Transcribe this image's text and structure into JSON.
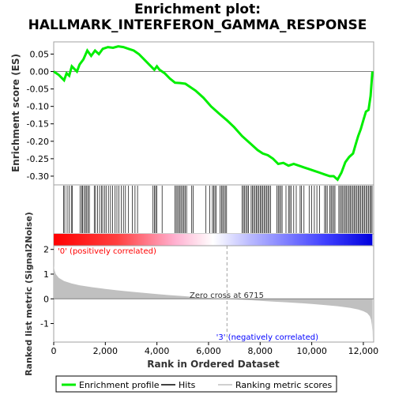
{
  "title_line1": "Enrichment plot:",
  "title_line2": "HALLMARK_INTERFERON_GAMMA_RESPONSE",
  "chart_data": {
    "type": "line",
    "x_label": "Rank in Ordered Dataset",
    "x_ticks": [
      0,
      2000,
      4000,
      6000,
      8000,
      10000,
      12000
    ],
    "x_tick_labels": [
      "0",
      "2,000",
      "4,000",
      "6,000",
      "8,000",
      "10,000",
      "12,000"
    ],
    "xlim": [
      0,
      12400
    ],
    "es_panel": {
      "ylabel": "Enrichment score (ES)",
      "ylim": [
        -0.325,
        0.085
      ],
      "y_ticks": [
        0.05,
        0.0,
        -0.05,
        -0.1,
        -0.15,
        -0.2,
        -0.25,
        -0.3
      ],
      "y_tick_labels": [
        "0.05",
        "0.00",
        "-0.05",
        "-0.10",
        "-0.15",
        "-0.20",
        "-0.25",
        "-0.30"
      ],
      "series_name": "Enrichment profile",
      "color": "#00ee00",
      "points": [
        [
          0,
          0.0
        ],
        [
          200,
          -0.01
        ],
        [
          400,
          -0.025
        ],
        [
          500,
          -0.005
        ],
        [
          600,
          -0.012
        ],
        [
          700,
          0.015
        ],
        [
          900,
          0.0
        ],
        [
          1000,
          0.02
        ],
        [
          1150,
          0.035
        ],
        [
          1300,
          0.06
        ],
        [
          1450,
          0.045
        ],
        [
          1600,
          0.06
        ],
        [
          1750,
          0.05
        ],
        [
          1900,
          0.065
        ],
        [
          2100,
          0.07
        ],
        [
          2300,
          0.068
        ],
        [
          2500,
          0.072
        ],
        [
          2700,
          0.07
        ],
        [
          2900,
          0.065
        ],
        [
          3100,
          0.06
        ],
        [
          3300,
          0.05
        ],
        [
          3500,
          0.035
        ],
        [
          3700,
          0.02
        ],
        [
          3900,
          0.005
        ],
        [
          4000,
          0.015
        ],
        [
          4100,
          0.005
        ],
        [
          4300,
          -0.005
        ],
        [
          4500,
          -0.02
        ],
        [
          4700,
          -0.032
        ],
        [
          4900,
          -0.033
        ],
        [
          5100,
          -0.035
        ],
        [
          5300,
          -0.045
        ],
        [
          5500,
          -0.055
        ],
        [
          5800,
          -0.075
        ],
        [
          6100,
          -0.1
        ],
        [
          6400,
          -0.12
        ],
        [
          6715,
          -0.14
        ],
        [
          7000,
          -0.16
        ],
        [
          7300,
          -0.185
        ],
        [
          7600,
          -0.205
        ],
        [
          7900,
          -0.225
        ],
        [
          8100,
          -0.235
        ],
        [
          8300,
          -0.24
        ],
        [
          8500,
          -0.25
        ],
        [
          8700,
          -0.265
        ],
        [
          8900,
          -0.262
        ],
        [
          9100,
          -0.27
        ],
        [
          9300,
          -0.265
        ],
        [
          9500,
          -0.27
        ],
        [
          9700,
          -0.275
        ],
        [
          9900,
          -0.28
        ],
        [
          10100,
          -0.285
        ],
        [
          10300,
          -0.29
        ],
        [
          10500,
          -0.295
        ],
        [
          10700,
          -0.3
        ],
        [
          10850,
          -0.3
        ],
        [
          11000,
          -0.31
        ],
        [
          11150,
          -0.29
        ],
        [
          11300,
          -0.26
        ],
        [
          11450,
          -0.245
        ],
        [
          11600,
          -0.235
        ],
        [
          11700,
          -0.21
        ],
        [
          11800,
          -0.185
        ],
        [
          11900,
          -0.165
        ],
        [
          12000,
          -0.14
        ],
        [
          12100,
          -0.115
        ],
        [
          12200,
          -0.11
        ],
        [
          12280,
          -0.07
        ],
        [
          12320,
          -0.03
        ],
        [
          12350,
          0.0
        ]
      ]
    },
    "hits_panel": {
      "series_name": "Hits",
      "hit_ranks": [
        380,
        430,
        520,
        600,
        680,
        720,
        1020,
        1080,
        1120,
        1180,
        1230,
        1280,
        1330,
        1380,
        1570,
        1620,
        1700,
        1780,
        1850,
        1900,
        1980,
        2030,
        2120,
        2200,
        2280,
        2380,
        2450,
        2530,
        2620,
        2700,
        2780,
        2900,
        3050,
        3150,
        3250,
        3850,
        3900,
        3950,
        4000,
        4200,
        4700,
        4750,
        4800,
        4850,
        4900,
        4950,
        5000,
        5050,
        5100,
        5150,
        5350,
        5400,
        5900,
        6050,
        6150,
        6200,
        6250,
        6300,
        6450,
        6500,
        6550,
        6600,
        6650,
        6700,
        7300,
        7350,
        7400,
        7450,
        7500,
        7550,
        7650,
        7700,
        7750,
        7800,
        7850,
        7900,
        7950,
        8000,
        8050,
        8100,
        8150,
        8200,
        8250,
        8300,
        8350,
        8400,
        8650,
        8700,
        8750,
        8800,
        8850,
        9000,
        9100,
        9150,
        9200,
        9300,
        9400,
        9550,
        9600,
        9700,
        9900,
        10000,
        10100,
        10200,
        10300,
        10500,
        10550,
        10600,
        10700,
        10750,
        10800,
        10850,
        10900,
        11050,
        11100,
        11150,
        11200,
        11250,
        11300,
        11350,
        11400,
        11450,
        11500,
        11550,
        11600,
        11650,
        11700,
        11750,
        11800,
        11850,
        11900,
        11950,
        12000,
        12050,
        12100,
        12150,
        12200,
        12250,
        12300,
        12340
      ]
    },
    "metric_panel": {
      "ylabel": "Ranked list metric (Signal2Noise)",
      "ylim": [
        -1.75,
        2.15
      ],
      "y_ticks": [
        2,
        1,
        0,
        -1
      ],
      "y_tick_labels": [
        "2",
        "1",
        "0",
        "-1"
      ],
      "series_name": "Ranking metric scores",
      "color": "#c0c0c0",
      "zero_cross": 6715,
      "zero_cross_label": "Zero cross at 6715",
      "pos_label": "'0' (positively correlated)",
      "neg_label": "'3' (negatively correlated)",
      "pos_color": "#ff0000",
      "neg_color": "#0000ff",
      "points": [
        [
          0,
          1.35
        ],
        [
          30,
          1.15
        ],
        [
          80,
          1.0
        ],
        [
          200,
          0.85
        ],
        [
          400,
          0.72
        ],
        [
          700,
          0.62
        ],
        [
          1000,
          0.55
        ],
        [
          1500,
          0.47
        ],
        [
          2000,
          0.4
        ],
        [
          2500,
          0.34
        ],
        [
          3000,
          0.29
        ],
        [
          3500,
          0.24
        ],
        [
          4000,
          0.19
        ],
        [
          4500,
          0.15
        ],
        [
          5000,
          0.11
        ],
        [
          5500,
          0.07
        ],
        [
          6000,
          0.04
        ],
        [
          6500,
          0.01
        ],
        [
          6715,
          0.0
        ],
        [
          7000,
          -0.02
        ],
        [
          7500,
          -0.05
        ],
        [
          8000,
          -0.08
        ],
        [
          8500,
          -0.11
        ],
        [
          9000,
          -0.14
        ],
        [
          9500,
          -0.17
        ],
        [
          10000,
          -0.21
        ],
        [
          10500,
          -0.25
        ],
        [
          11000,
          -0.3
        ],
        [
          11500,
          -0.37
        ],
        [
          11800,
          -0.43
        ],
        [
          12000,
          -0.5
        ],
        [
          12150,
          -0.58
        ],
        [
          12250,
          -0.7
        ],
        [
          12300,
          -0.85
        ],
        [
          12330,
          -1.05
        ],
        [
          12350,
          -1.3
        ],
        [
          12360,
          -1.65
        ]
      ]
    },
    "legend": [
      {
        "label": "Enrichment profile",
        "color": "#00ee00"
      },
      {
        "label": "Hits",
        "color": "#000000"
      },
      {
        "label": "Ranking metric scores",
        "color": "#c0c0c0"
      }
    ]
  }
}
